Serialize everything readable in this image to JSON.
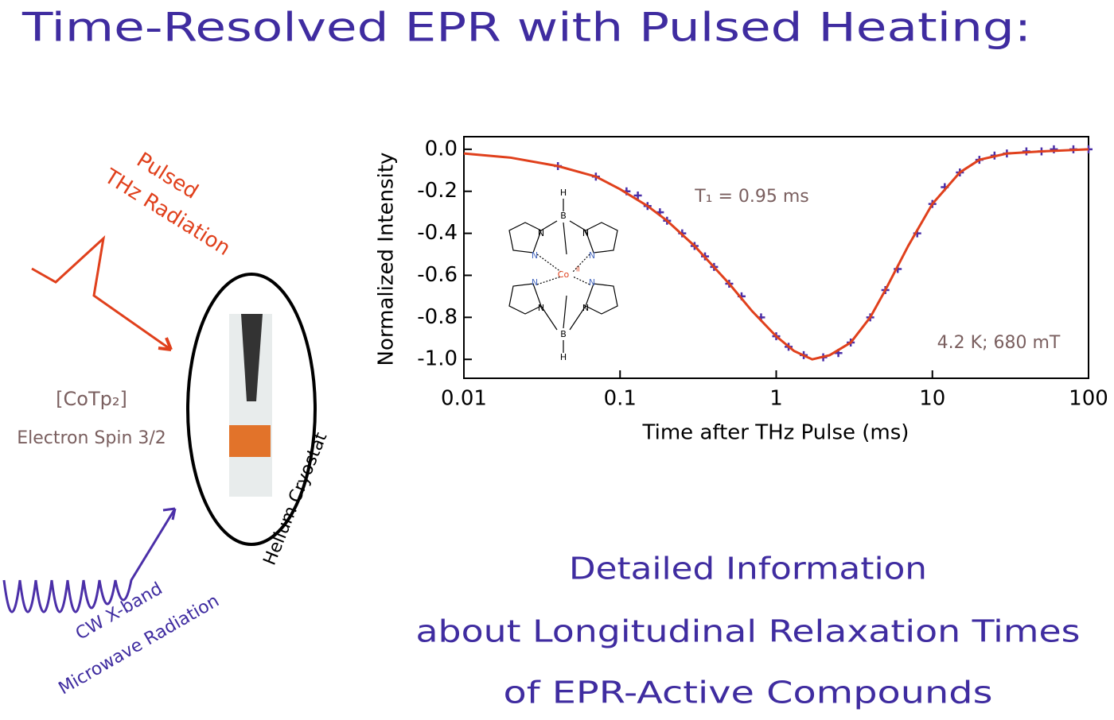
{
  "header": {
    "title": "Time-Resolved EPR with Pulsed Heating:"
  },
  "diagram": {
    "pulsed": "Pulsed",
    "thz": "THz Radiation",
    "compound": "[CoTp₂]",
    "spin": "Electron Spin 3/2",
    "cryostat": "Helium Cryostat",
    "cw": "CW X-band",
    "microwave": "Microwave Radiation"
  },
  "molecule": {
    "h": "H",
    "b": "B",
    "n": "N",
    "co": "Co",
    "co_ox": "II"
  },
  "chart_data": {
    "type": "scatter",
    "xlabel": "Time after THz Pulse (ms)",
    "ylabel": "Normalized Intensity",
    "xscale": "log",
    "xlim": [
      0.01,
      100
    ],
    "xticks": [
      0.01,
      0.1,
      1,
      10,
      100
    ],
    "ylim": [
      -1.09,
      0.06
    ],
    "yticks": [
      {
        "value": 0,
        "label": "0.0"
      },
      -0.2,
      -0.4,
      -0.6,
      -0.8,
      {
        "value": -1,
        "label": "-1.0"
      }
    ],
    "annotations": [
      "T₁ = 0.95 ms",
      "4.2 K; 680 mT"
    ],
    "series": [
      {
        "style": "markers",
        "color": "#4b2fa8",
        "x": [
          0.04,
          0.07,
          0.11,
          0.13,
          0.15,
          0.18,
          0.2,
          0.25,
          0.3,
          0.35,
          0.4,
          0.5,
          0.6,
          0.8,
          1,
          1.2,
          1.5,
          2,
          2.5,
          3,
          4,
          5,
          6,
          8,
          10,
          12,
          15,
          20,
          25,
          30,
          40,
          50,
          60,
          80,
          100
        ],
        "values": [
          -0.08,
          -0.13,
          -0.2,
          -0.22,
          -0.27,
          -0.3,
          -0.34,
          -0.4,
          -0.46,
          -0.51,
          -0.56,
          -0.64,
          -0.7,
          -0.8,
          -0.89,
          -0.94,
          -0.98,
          -0.99,
          -0.97,
          -0.92,
          -0.8,
          -0.67,
          -0.57,
          -0.4,
          -0.26,
          -0.18,
          -0.11,
          -0.05,
          -0.03,
          -0.02,
          -0.01,
          -0.01,
          0,
          0,
          0
        ]
      },
      {
        "style": "line",
        "color": "#e0401c",
        "x": [
          0.01,
          0.02,
          0.04,
          0.07,
          0.1,
          0.15,
          0.2,
          0.3,
          0.5,
          0.7,
          1,
          1.3,
          1.7,
          2.2,
          3,
          4,
          5,
          7,
          10,
          15,
          20,
          30,
          50,
          100
        ],
        "values": [
          -0.02,
          -0.04,
          -0.08,
          -0.13,
          -0.19,
          -0.27,
          -0.34,
          -0.46,
          -0.64,
          -0.77,
          -0.89,
          -0.96,
          -1,
          -0.98,
          -0.92,
          -0.8,
          -0.67,
          -0.46,
          -0.26,
          -0.11,
          -0.05,
          -0.02,
          -0.01,
          0
        ]
      }
    ]
  },
  "footer": {
    "lines": [
      "Detailed Information",
      "about Longitudinal Relaxation Times",
      "of EPR-Active Compounds"
    ]
  }
}
